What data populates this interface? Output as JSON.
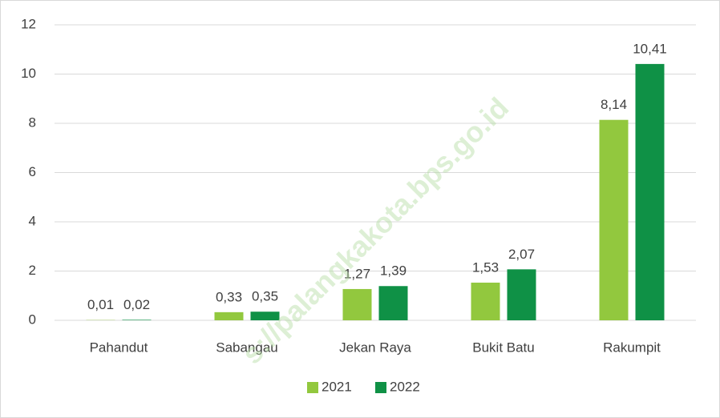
{
  "chart_data": {
    "type": "bar",
    "categories": [
      "Pahandut",
      "Sabangau",
      "Jekan Raya",
      "Bukit Batu",
      "Rakumpit"
    ],
    "series": [
      {
        "name": "2021",
        "color": "#92c83e",
        "values": [
          0.01,
          0.33,
          1.27,
          1.53,
          8.14
        ],
        "value_labels": [
          "0,01",
          "0,33",
          "1,27",
          "1,53",
          "8,14"
        ]
      },
      {
        "name": "2022",
        "color": "#0f9146",
        "values": [
          0.02,
          0.35,
          1.39,
          2.07,
          10.41
        ],
        "value_labels": [
          "0,02",
          "0,35",
          "1,39",
          "2,07",
          "10,41"
        ]
      }
    ],
    "ylim": [
      0,
      12
    ],
    "yticks": [
      0,
      2,
      4,
      6,
      8,
      10,
      12
    ],
    "grid": true,
    "legend": "bottom",
    "watermark": "s://palangkakota.bps.go.id"
  }
}
